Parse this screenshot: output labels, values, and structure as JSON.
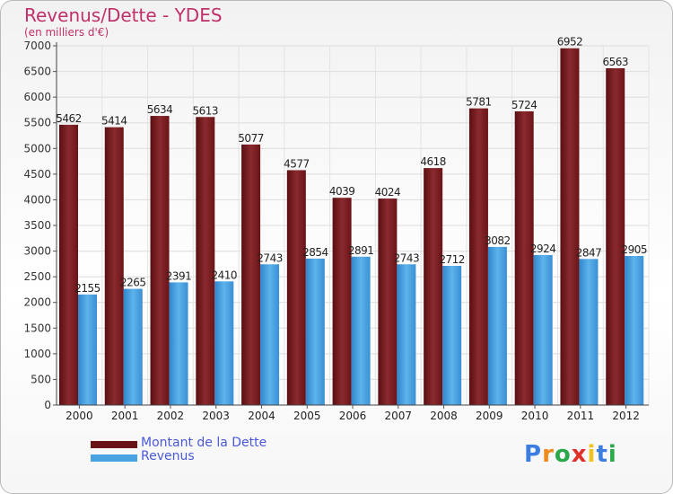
{
  "chart_data": {
    "type": "bar",
    "title": "Revenus/Dette - YDES",
    "subtitle": "(en milliers d'€)",
    "categories": [
      "2000",
      "2001",
      "2002",
      "2003",
      "2004",
      "2005",
      "2006",
      "2007",
      "2008",
      "2009",
      "2010",
      "2011",
      "2012"
    ],
    "series": [
      {
        "name": "Montant de la Dette",
        "color": "#7a1b20",
        "values": [
          5462,
          5414,
          5634,
          5613,
          5077,
          4577,
          4039,
          4024,
          4618,
          5781,
          5724,
          6952,
          6563
        ]
      },
      {
        "name": "Revenus",
        "color": "#4aa3e0",
        "values": [
          2155,
          2265,
          2391,
          2410,
          2743,
          2854,
          2891,
          2743,
          2712,
          3082,
          2924,
          2847,
          2905
        ]
      }
    ],
    "ylim": [
      0,
      7000
    ],
    "yticks": [
      0,
      500,
      1000,
      1500,
      2000,
      2500,
      3000,
      3500,
      4000,
      4500,
      5000,
      5500,
      6000,
      6500,
      7000
    ],
    "grid": true,
    "legend": "bottom-left"
  },
  "legend": {
    "debt_label": "Montant de la Dette",
    "revenue_label": "Revenus"
  },
  "brand": {
    "letters": [
      "P",
      "r",
      "o",
      "x",
      "i",
      "t",
      "i"
    ],
    "colors": [
      "#3b7de0",
      "#f08a1c",
      "#2aa84a",
      "#e0302a",
      "#f0c21c",
      "#3b7de0",
      "#2aa84a"
    ]
  }
}
